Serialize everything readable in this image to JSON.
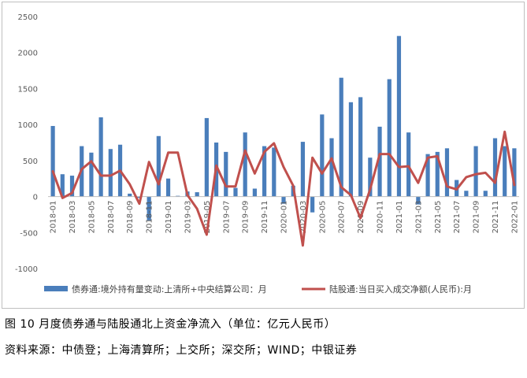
{
  "caption": "图 10 月度债券通与陆股通北上资金净流入（单位：亿元人民币）",
  "source": "资料来源：中债登；上海清算所；上交所；深交所；WIND；中银证券",
  "chart_data": {
    "type": "bar+line",
    "ylim": [
      -1000,
      2500
    ],
    "yticks": [
      -1000,
      -500,
      0,
      500,
      1000,
      1500,
      2000,
      2500
    ],
    "legend_position": "bottom",
    "grid": false,
    "categories": [
      "2018-01",
      "2018-02",
      "2018-03",
      "2018-04",
      "2018-05",
      "2018-06",
      "2018-07",
      "2018-08",
      "2018-09",
      "2018-10",
      "2018-11",
      "2018-12",
      "2019-01",
      "2019-02",
      "2019-03",
      "2019-04",
      "2019-05",
      "2019-06",
      "2019-07",
      "2019-08",
      "2019-09",
      "2019-10",
      "2019-11",
      "2019-12",
      "2020-01",
      "2020-02",
      "2020-03",
      "2020-04",
      "2020-05",
      "2020-06",
      "2020-07",
      "2020-08",
      "2020-09",
      "2020-10",
      "2020-11",
      "2020-12",
      "2021-01",
      "2021-02",
      "2021-03",
      "2021-04",
      "2021-05",
      "2021-06",
      "2021-07",
      "2021-08",
      "2021-09",
      "2021-10",
      "2021-11",
      "2021-12",
      "2022-01"
    ],
    "shown_tick_labels": [
      "2018-01",
      "2018-03",
      "2018-05",
      "2018-07",
      "2018-09",
      "2018-11",
      "2019-01",
      "2019-03",
      "2019-05",
      "2019-07",
      "2019-09",
      "2019-11",
      "2020-01",
      "2020-03",
      "2020-05",
      "2020-07",
      "2020-09",
      "2020-11",
      "2021-01",
      "2021-03",
      "2021-05",
      "2021-07",
      "2021-09",
      "2021-11",
      "2022-01"
    ],
    "series": [
      {
        "name": "债券通:境外持有量变动:上清所+中央结算公司：月",
        "kind": "bar",
        "color": "#4a7ebb",
        "values": [
          980,
          310,
          290,
          700,
          610,
          1100,
          660,
          720,
          40,
          -20,
          -330,
          840,
          250,
          10,
          70,
          60,
          1090,
          750,
          620,
          120,
          890,
          110,
          700,
          680,
          -100,
          150,
          760,
          -220,
          1140,
          810,
          1650,
          1310,
          1380,
          540,
          970,
          1630,
          2230,
          890,
          -110,
          590,
          620,
          670,
          230,
          80,
          700,
          80,
          810,
          700,
          670
        ]
      },
      {
        "name": "陆股通:当日买入成交净额(人民币):月",
        "kind": "line",
        "color": "#c0504d",
        "values": [
          350,
          -20,
          50,
          380,
          490,
          290,
          290,
          360,
          170,
          -100,
          480,
          170,
          610,
          610,
          20,
          -170,
          -530,
          430,
          140,
          140,
          640,
          320,
          620,
          740,
          410,
          150,
          -680,
          540,
          320,
          530,
          130,
          20,
          -300,
          100,
          590,
          590,
          410,
          420,
          190,
          540,
          560,
          140,
          100,
          270,
          310,
          330,
          190,
          900,
          160
        ]
      }
    ]
  }
}
